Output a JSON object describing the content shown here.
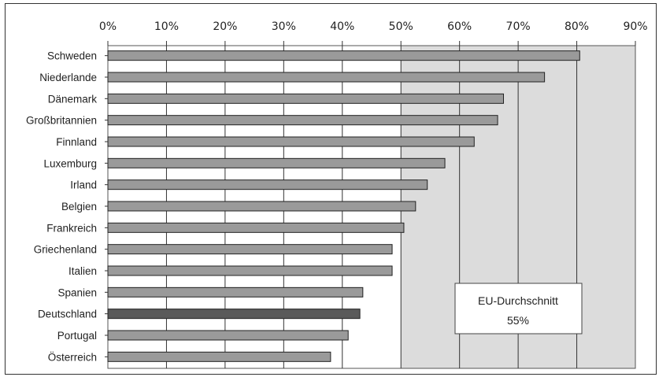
{
  "chart_data": {
    "type": "bar",
    "orientation": "horizontal",
    "categories": [
      "Schweden",
      "Niederlande",
      "Dänemark",
      "Großbritannien",
      "Finnland",
      "Luxemburg",
      "Irland",
      "Belgien",
      "Frankreich",
      "Griechenland",
      "Italien",
      "Spanien",
      "Deutschland",
      "Portugal",
      "Österreich"
    ],
    "values": [
      80.5,
      74.5,
      67.5,
      66.5,
      62.5,
      57.5,
      54.5,
      52.5,
      50.5,
      48.5,
      48.5,
      43.5,
      43,
      41,
      38
    ],
    "highlight_category": "Deutschland",
    "xlim": [
      0,
      90
    ],
    "xticks": [
      "0%",
      "10%",
      "20%",
      "30%",
      "40%",
      "50%",
      "60%",
      "70%",
      "80%",
      "90%"
    ],
    "grid": true,
    "shaded_range": [
      50,
      90
    ],
    "annotation": {
      "line1": "EU-Durchschnitt",
      "line2": "55%"
    },
    "colors": {
      "bar": "#9a9a9a",
      "highlight": "#5a5a5a",
      "shade": "#dcdcdc",
      "grid": "#333333"
    }
  }
}
